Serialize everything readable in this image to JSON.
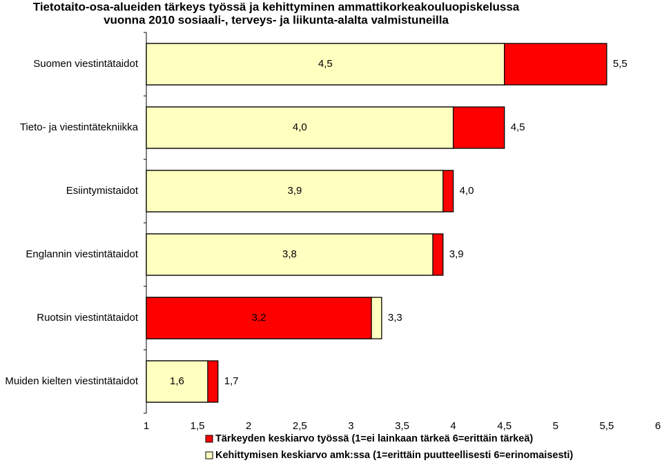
{
  "chart_data": {
    "type": "bar",
    "orientation": "horizontal",
    "title": [
      "Tietotaito-osa-alueiden tärkeys työssä ja kehittyminen ammattikorkeakouluopiskelussa",
      "vuonna 2010 sosiaali-, terveys- ja liikunta-alalta valmistuneilla"
    ],
    "categories": [
      "Suomen viestintätaidot",
      "Tieto- ja viestintätekniikka",
      "Esiintymistaidot",
      "Englannin viestintätaidot",
      "Ruotsin viestintätaidot",
      "Muiden kielten viestintätaidot"
    ],
    "series": [
      {
        "name": "Tärkeyden keskiarvo työssä (1=ei lainkaan tärkeä 6=erittäin tärkeä)",
        "color": "#ff0000",
        "values": [
          5.5,
          4.5,
          4.0,
          3.9,
          3.2,
          1.7
        ],
        "value_labels": [
          "5,5",
          "4,5",
          "4,0",
          "3,9",
          "3,2",
          "1,7"
        ]
      },
      {
        "name": "Kehittymisen keskiarvo amk:ssa (1=erittäin puutteellisesti 6=erinomaisesti)",
        "color": "#ffffc0",
        "values": [
          4.5,
          4.0,
          3.9,
          3.8,
          3.3,
          1.6
        ],
        "value_labels": [
          "4,5",
          "4,0",
          "3,9",
          "3,8",
          "3,3",
          "1,6"
        ]
      }
    ],
    "xlim": [
      1,
      6
    ],
    "xticks": [
      1,
      {
        "value": 1.5,
        "label": "1,5"
      },
      2,
      {
        "value": 2.5,
        "label": "2,5"
      },
      3,
      {
        "value": 3.5,
        "label": "3,5"
      },
      4,
      {
        "value": 4.5,
        "label": "4,5"
      },
      5,
      {
        "value": 5.5,
        "label": "5,5"
      },
      6
    ],
    "grid": false,
    "legend": "bottom"
  }
}
